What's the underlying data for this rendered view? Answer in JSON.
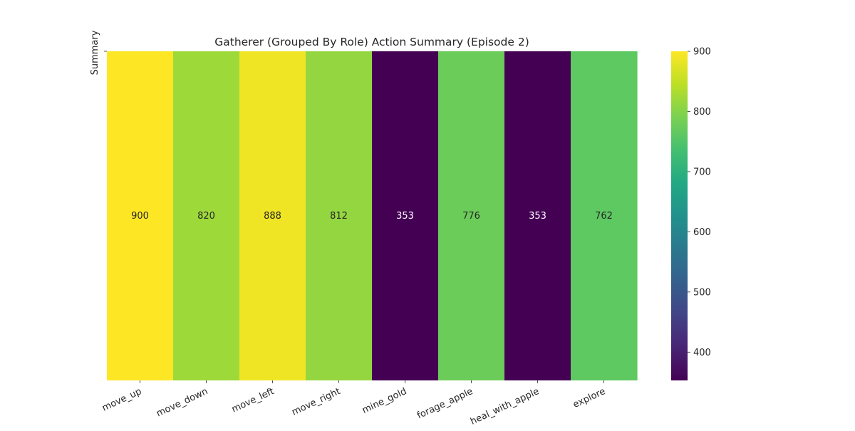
{
  "chart_data": {
    "type": "heatmap",
    "title": "Gatherer (Grouped By Role) Action Summary (Episode 2)",
    "ylabel": "Summary",
    "xlabel": "",
    "rows": [
      "Summary"
    ],
    "categories": [
      "move_up",
      "move_down",
      "move_left",
      "move_right",
      "mine_gold",
      "forage_apple",
      "heal_with_apple",
      "explore"
    ],
    "values": [
      900,
      820,
      888,
      812,
      353,
      776,
      353,
      762
    ],
    "colormap": "viridis",
    "vmin": 353,
    "vmax": 900,
    "colorbar_ticks": [
      400,
      500,
      600,
      700,
      800,
      900
    ],
    "colorbar_ticks_text": [
      "400",
      "500",
      "600",
      "700",
      "800",
      "900"
    ],
    "colorbar_position": "right",
    "annotations": true
  }
}
